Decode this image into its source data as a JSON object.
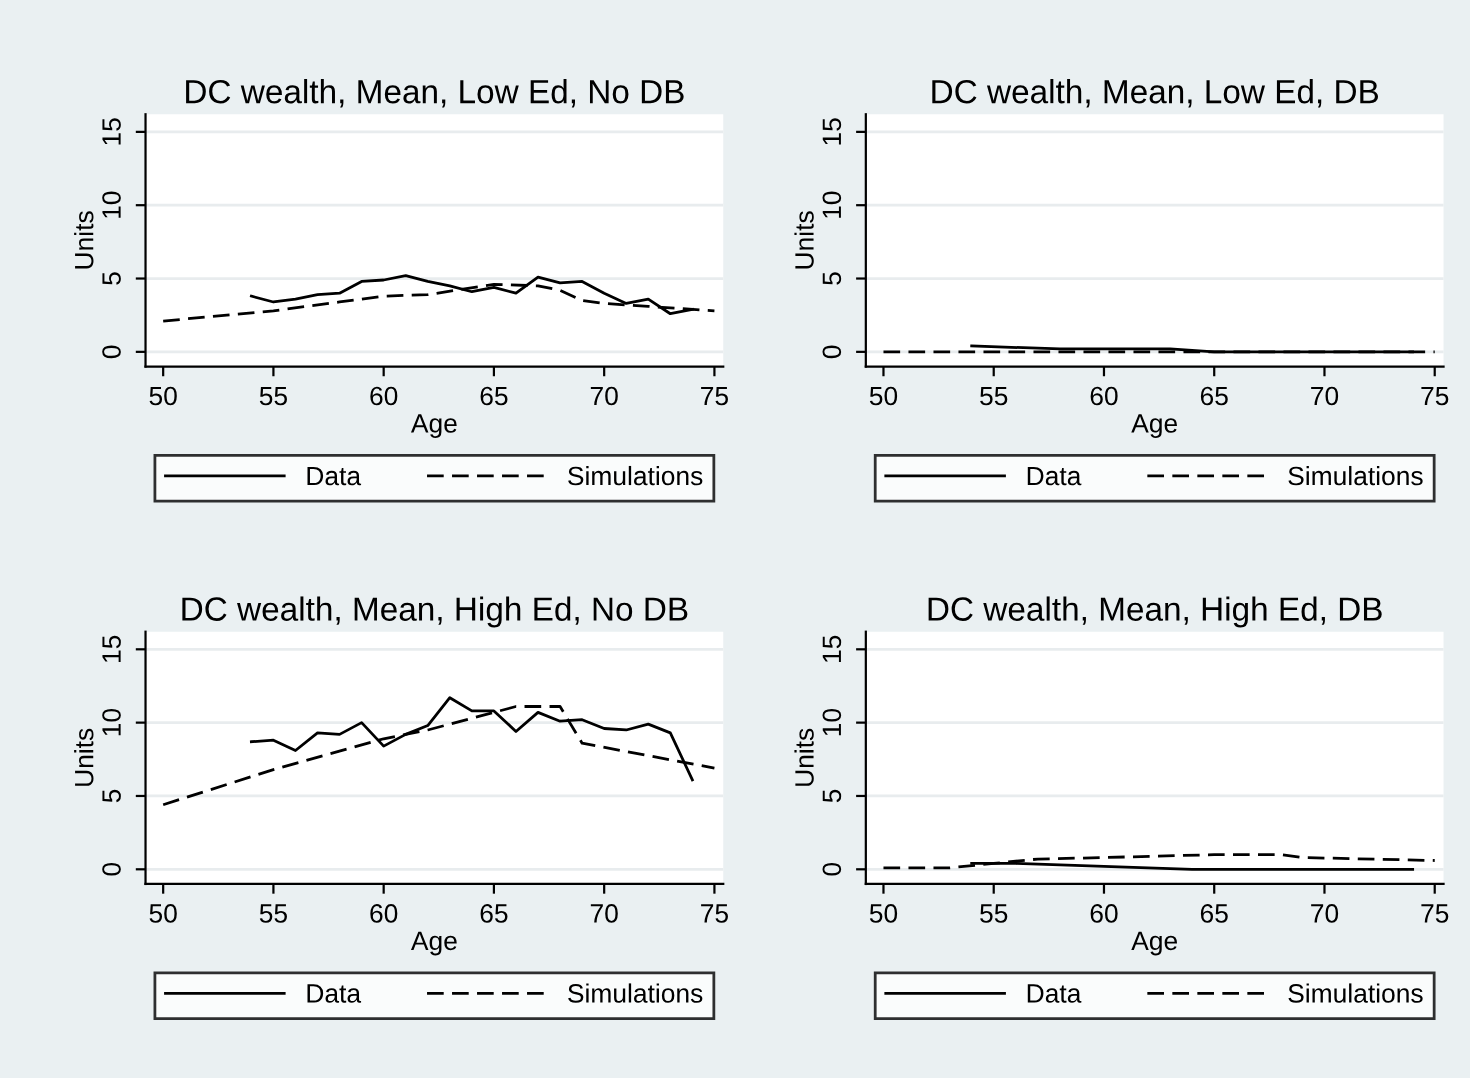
{
  "chart_data": [
    {
      "type": "line",
      "title": "DC wealth, Mean, Low Ed, No DB",
      "xlabel": "Age",
      "ylabel": "Units",
      "xlim": [
        49.2,
        75.4
      ],
      "ylim": [
        -1,
        16.2
      ],
      "xticks": [
        50,
        55,
        60,
        65,
        70,
        75
      ],
      "yticks": [
        0,
        5,
        10,
        15
      ],
      "grid": "y",
      "legend": "bottom",
      "series": [
        {
          "name": "Data",
          "color": "#000000",
          "line_style": "solid",
          "x": [
            54,
            55,
            56,
            57,
            58,
            59,
            60,
            61,
            62,
            63,
            64,
            65,
            66,
            67,
            68,
            69,
            70,
            71,
            72,
            73,
            74
          ],
          "values": [
            3.8,
            3.4,
            3.6,
            3.9,
            4.0,
            4.8,
            4.9,
            5.2,
            4.8,
            4.5,
            4.1,
            4.4,
            4.0,
            5.1,
            4.7,
            4.8,
            4.0,
            3.3,
            3.6,
            2.6,
            2.9
          ]
        },
        {
          "name": "Simulations",
          "color": "#000000",
          "line_style": "dashed",
          "x": [
            50,
            55,
            58,
            60,
            62,
            65,
            67,
            68,
            69,
            70,
            72,
            75
          ],
          "values": [
            2.1,
            2.8,
            3.4,
            3.8,
            3.9,
            4.6,
            4.5,
            4.2,
            3.5,
            3.3,
            3.1,
            2.8
          ]
        }
      ]
    },
    {
      "type": "line",
      "title": "DC wealth, Mean, Low Ed, DB",
      "xlabel": "Age",
      "ylabel": "Units",
      "xlim": [
        49.2,
        75.4
      ],
      "ylim": [
        -1,
        16.2
      ],
      "xticks": [
        50,
        55,
        60,
        65,
        70,
        75
      ],
      "yticks": [
        0,
        5,
        10,
        15
      ],
      "grid": "y",
      "legend": "bottom",
      "series": [
        {
          "name": "Data",
          "color": "#000000",
          "line_style": "solid",
          "x": [
            54,
            58,
            63,
            65,
            74
          ],
          "values": [
            0.4,
            0.2,
            0.2,
            0.0,
            0.0
          ]
        },
        {
          "name": "Simulations",
          "color": "#000000",
          "line_style": "dashed",
          "x": [
            50,
            75
          ],
          "values": [
            0.0,
            0.0
          ]
        }
      ]
    },
    {
      "type": "line",
      "title": "DC wealth, Mean, High Ed, No DB",
      "xlabel": "Age",
      "ylabel": "Units",
      "xlim": [
        49.2,
        75.4
      ],
      "ylim": [
        -1,
        16.2
      ],
      "xticks": [
        50,
        55,
        60,
        65,
        70,
        75
      ],
      "yticks": [
        0,
        5,
        10,
        15
      ],
      "grid": "y",
      "legend": "bottom",
      "series": [
        {
          "name": "Data",
          "color": "#000000",
          "line_style": "solid",
          "x": [
            54,
            55,
            56,
            57,
            58,
            59,
            60,
            61,
            62,
            63,
            64,
            65,
            66,
            67,
            68,
            69,
            70,
            71,
            72,
            73,
            74
          ],
          "values": [
            8.7,
            8.8,
            8.1,
            9.3,
            9.2,
            10.0,
            8.4,
            9.2,
            9.8,
            11.7,
            10.8,
            10.8,
            9.4,
            10.7,
            10.1,
            10.2,
            9.6,
            9.5,
            9.9,
            9.3,
            6.1
          ]
        },
        {
          "name": "Simulations",
          "color": "#000000",
          "line_style": "dashed",
          "x": [
            50,
            55,
            60,
            62,
            65,
            66,
            68,
            69,
            75
          ],
          "values": [
            4.4,
            6.8,
            8.9,
            9.5,
            10.7,
            11.1,
            11.1,
            8.6,
            6.9
          ]
        }
      ]
    },
    {
      "type": "line",
      "title": "DC wealth, Mean, High Ed, DB",
      "xlabel": "Age",
      "ylabel": "Units",
      "xlim": [
        49.2,
        75.4
      ],
      "ylim": [
        -1,
        16.2
      ],
      "xticks": [
        50,
        55,
        60,
        65,
        70,
        75
      ],
      "yticks": [
        0,
        5,
        10,
        15
      ],
      "grid": "y",
      "legend": "bottom",
      "series": [
        {
          "name": "Data",
          "color": "#000000",
          "line_style": "solid",
          "x": [
            54,
            56,
            60,
            64,
            74
          ],
          "values": [
            0.4,
            0.4,
            0.2,
            0.0,
            0.0
          ]
        },
        {
          "name": "Simulations",
          "color": "#000000",
          "line_style": "dashed",
          "x": [
            50,
            53,
            55,
            57,
            60,
            65,
            68,
            69,
            75
          ],
          "values": [
            0.1,
            0.1,
            0.4,
            0.7,
            0.8,
            1.0,
            1.0,
            0.8,
            0.6
          ]
        }
      ]
    }
  ]
}
